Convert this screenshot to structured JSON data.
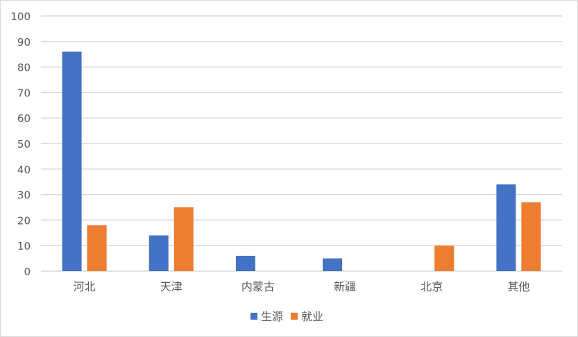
{
  "chart_data": {
    "type": "bar",
    "title": "",
    "xlabel": "",
    "ylabel": "",
    "categories": [
      "河北",
      "天津",
      "内蒙古",
      "新疆",
      "北京",
      "其他"
    ],
    "series": [
      {
        "name": "生源",
        "values": [
          86,
          14,
          6,
          5,
          0,
          34
        ],
        "color": "#4472C4"
      },
      {
        "name": "就业",
        "values": [
          18,
          25,
          0,
          0,
          10,
          27
        ],
        "color": "#ED7D31"
      }
    ],
    "ylim": [
      0,
      100
    ],
    "yticks": [
      0,
      10,
      20,
      30,
      40,
      50,
      60,
      70,
      80,
      90,
      100
    ],
    "grid": true,
    "legend": "bottom"
  }
}
